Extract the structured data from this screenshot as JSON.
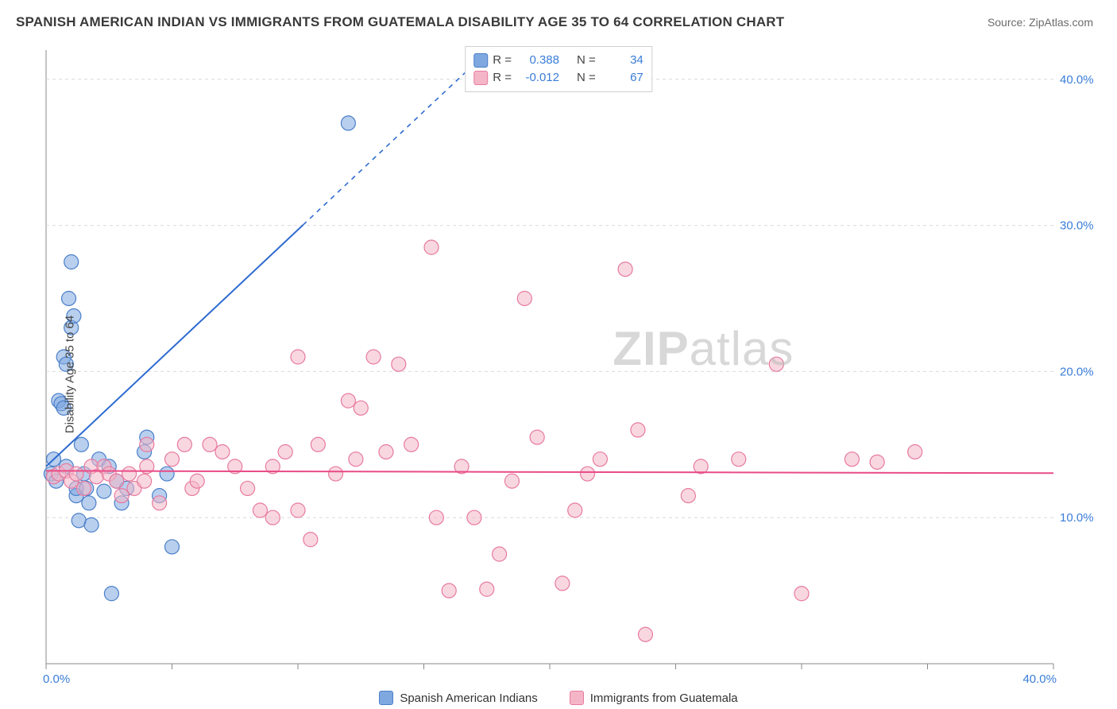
{
  "header": {
    "title": "SPANISH AMERICAN INDIAN VS IMMIGRANTS FROM GUATEMALA DISABILITY AGE 35 TO 64 CORRELATION CHART",
    "source": "Source: ZipAtlas.com"
  },
  "chart": {
    "type": "scatter",
    "ylabel": "Disability Age 35 to 64",
    "xlim": [
      0,
      40
    ],
    "ylim": [
      0,
      42
    ],
    "xticks": [
      0,
      5,
      10,
      15,
      20,
      25,
      30,
      35,
      40
    ],
    "yticks": [
      10,
      20,
      30,
      40
    ],
    "xtick_labels": {
      "0": "0.0%",
      "40": "40.0%"
    },
    "ytick_labels": {
      "10": "10.0%",
      "20": "20.0%",
      "30": "30.0%",
      "40": "40.0%"
    },
    "background_color": "#ffffff",
    "grid_color": "#d9d9d9",
    "axis_color": "#888888",
    "tick_label_color": "#3a7dd8",
    "marker_radius": 9,
    "marker_opacity": 0.55,
    "series": [
      {
        "name": "Spanish American Indians",
        "color": "#7fa8e0",
        "stroke": "#4a7fc9",
        "r": 0.388,
        "n": 34,
        "trend": {
          "slope": 1.62,
          "intercept": 13.5,
          "color": "#2e6bd0",
          "dashed_after_x": 10.2
        },
        "points": [
          [
            0.2,
            13.0
          ],
          [
            0.3,
            14.0
          ],
          [
            0.4,
            12.5
          ],
          [
            0.5,
            18.0
          ],
          [
            0.6,
            17.8
          ],
          [
            0.7,
            17.5
          ],
          [
            0.7,
            21.0
          ],
          [
            0.8,
            20.5
          ],
          [
            0.8,
            13.5
          ],
          [
            0.9,
            25.0
          ],
          [
            1.0,
            27.5
          ],
          [
            1.0,
            23.0
          ],
          [
            1.1,
            23.8
          ],
          [
            1.2,
            11.5
          ],
          [
            1.2,
            12.0
          ],
          [
            1.3,
            9.8
          ],
          [
            1.4,
            15.0
          ],
          [
            1.5,
            13.0
          ],
          [
            1.6,
            12.0
          ],
          [
            1.7,
            11.0
          ],
          [
            1.8,
            9.5
          ],
          [
            2.1,
            14.0
          ],
          [
            2.3,
            11.8
          ],
          [
            2.5,
            13.5
          ],
          [
            2.6,
            4.8
          ],
          [
            2.8,
            12.5
          ],
          [
            3.0,
            11.0
          ],
          [
            3.2,
            12.0
          ],
          [
            3.9,
            14.5
          ],
          [
            4.0,
            15.5
          ],
          [
            4.5,
            11.5
          ],
          [
            4.8,
            13.0
          ],
          [
            5.0,
            8.0
          ],
          [
            12.0,
            37.0
          ]
        ]
      },
      {
        "name": "Immigrants from Guatemala",
        "color": "#f4b6c7",
        "stroke": "#e77aa0",
        "r": -0.012,
        "n": 67,
        "trend": {
          "slope": -0.004,
          "intercept": 13.2,
          "color": "#e94b87",
          "dashed_after_x": 100
        },
        "points": [
          [
            0.3,
            12.8
          ],
          [
            0.5,
            13.0
          ],
          [
            0.8,
            13.2
          ],
          [
            1.0,
            12.5
          ],
          [
            1.2,
            13.0
          ],
          [
            1.5,
            12.0
          ],
          [
            1.8,
            13.5
          ],
          [
            2.0,
            12.8
          ],
          [
            2.3,
            13.5
          ],
          [
            2.5,
            13.0
          ],
          [
            2.8,
            12.5
          ],
          [
            3.0,
            11.5
          ],
          [
            3.3,
            13.0
          ],
          [
            3.5,
            12.0
          ],
          [
            3.9,
            12.5
          ],
          [
            4.0,
            13.5
          ],
          [
            4.0,
            15.0
          ],
          [
            4.5,
            11.0
          ],
          [
            5.0,
            14.0
          ],
          [
            5.5,
            15.0
          ],
          [
            5.8,
            12.0
          ],
          [
            6.0,
            12.5
          ],
          [
            6.5,
            15.0
          ],
          [
            7.0,
            14.5
          ],
          [
            7.5,
            13.5
          ],
          [
            8.0,
            12.0
          ],
          [
            8.5,
            10.5
          ],
          [
            9.0,
            13.5
          ],
          [
            9.0,
            10.0
          ],
          [
            9.5,
            14.5
          ],
          [
            10.0,
            10.5
          ],
          [
            10.0,
            21.0
          ],
          [
            10.5,
            8.5
          ],
          [
            10.8,
            15.0
          ],
          [
            11.5,
            13.0
          ],
          [
            12.0,
            18.0
          ],
          [
            12.3,
            14.0
          ],
          [
            12.5,
            17.5
          ],
          [
            13.0,
            21.0
          ],
          [
            13.5,
            14.5
          ],
          [
            14.0,
            20.5
          ],
          [
            14.5,
            15.0
          ],
          [
            15.3,
            28.5
          ],
          [
            15.5,
            10.0
          ],
          [
            16.0,
            5.0
          ],
          [
            16.5,
            13.5
          ],
          [
            17.0,
            10.0
          ],
          [
            17.5,
            5.1
          ],
          [
            18.0,
            7.5
          ],
          [
            18.5,
            12.5
          ],
          [
            19.0,
            25.0
          ],
          [
            19.5,
            15.5
          ],
          [
            20.5,
            5.5
          ],
          [
            21.0,
            10.5
          ],
          [
            21.5,
            13.0
          ],
          [
            22.0,
            14.0
          ],
          [
            23.0,
            27.0
          ],
          [
            23.5,
            16.0
          ],
          [
            23.8,
            2.0
          ],
          [
            25.5,
            11.5
          ],
          [
            26.0,
            13.5
          ],
          [
            27.5,
            14.0
          ],
          [
            29.0,
            20.5
          ],
          [
            30.0,
            4.8
          ],
          [
            32.0,
            14.0
          ],
          [
            34.5,
            14.5
          ],
          [
            33.0,
            13.8
          ]
        ]
      }
    ]
  },
  "legend": {
    "top": {
      "r_label": "R =",
      "n_label": "N ="
    },
    "bottom": {
      "series1": "Spanish American Indians",
      "series2": "Immigrants from Guatemala"
    }
  },
  "watermark": {
    "zip": "ZIP",
    "atlas": "atlas"
  }
}
